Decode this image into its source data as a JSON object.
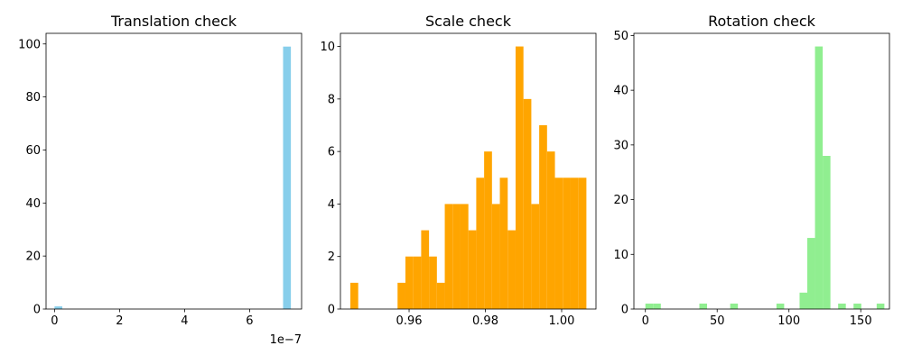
{
  "chart_data": [
    {
      "type": "bar",
      "title": "Translation check",
      "color": "#87ceeb",
      "xlim": [
        -2.6e-08,
        7.6e-07
      ],
      "ylim": [
        0,
        104
      ],
      "x_ticks": [
        0,
        2e-07,
        4e-07,
        6e-07
      ],
      "x_tick_labels": [
        "0",
        "2",
        "4",
        "6"
      ],
      "y_ticks": [
        0,
        20,
        40,
        60,
        80,
        100
      ],
      "y_tick_labels": [
        "0",
        "20",
        "40",
        "60",
        "80",
        "100"
      ],
      "offset_text": "1e−7",
      "bin_edges": [
        0,
        2.4e-08,
        7.03e-07,
        7.27e-07
      ],
      "bins": [
        {
          "x0": 0,
          "x1": 2.4e-08,
          "count": 1
        },
        {
          "x0": 7.03e-07,
          "x1": 7.27e-07,
          "count": 99
        }
      ]
    },
    {
      "type": "bar",
      "title": "Scale check",
      "color": "#ffa500",
      "xlim": [
        0.942,
        1.009
      ],
      "ylim": [
        0,
        10.5
      ],
      "x_ticks": [
        0.96,
        0.98,
        1.0
      ],
      "x_tick_labels": [
        "0.96",
        "0.98",
        "1.00"
      ],
      "y_ticks": [
        0,
        2,
        4,
        6,
        8,
        10
      ],
      "y_tick_labels": [
        "0",
        "2",
        "4",
        "6",
        "8",
        "10"
      ],
      "bin_start": 0.9446,
      "bin_width": 0.002063,
      "counts": [
        1,
        0,
        0,
        0,
        0,
        0,
        1,
        2,
        2,
        3,
        2,
        1,
        4,
        4,
        4,
        3,
        5,
        6,
        4,
        5,
        3,
        10,
        8,
        4,
        7,
        6,
        5,
        5,
        5,
        5
      ]
    },
    {
      "type": "bar",
      "title": "Rotation check",
      "color": "#90ee90",
      "xlim": [
        -8,
        170
      ],
      "ylim": [
        0,
        50.4
      ],
      "x_ticks": [
        0,
        50,
        100,
        150
      ],
      "x_tick_labels": [
        "0",
        "50",
        "100",
        "150"
      ],
      "y_ticks": [
        0,
        10,
        20,
        30,
        40,
        50
      ],
      "y_tick_labels": [
        "0",
        "10",
        "20",
        "30",
        "40",
        "50"
      ],
      "bin_start": 0,
      "bin_width": 5.37,
      "counts": [
        1,
        1,
        0,
        0,
        0,
        0,
        0,
        1,
        0,
        0,
        0,
        1,
        0,
        0,
        0,
        0,
        0,
        1,
        0,
        0,
        3,
        13,
        48,
        28,
        0,
        1,
        0,
        1,
        0,
        0,
        1
      ]
    }
  ]
}
